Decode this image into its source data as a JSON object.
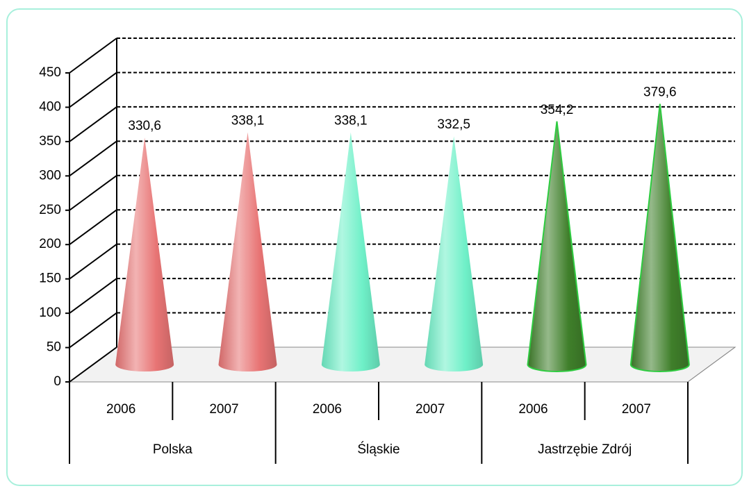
{
  "chart_data": {
    "type": "cone",
    "groups": [
      {
        "name": "Polska",
        "categories": [
          "2006",
          "2007"
        ],
        "color": "#e87474"
      },
      {
        "name": "Śląskie",
        "categories": [
          "2006",
          "2007"
        ],
        "color": "#6ff0c8"
      },
      {
        "name": "Jastrzębie Zdrój",
        "categories": [
          "2006",
          "2007"
        ],
        "color": "#3f7f2a"
      }
    ],
    "values": [
      330.6,
      338.1,
      338.1,
      332.5,
      354.2,
      379.6
    ],
    "value_labels": [
      "330,6",
      "338,1",
      "338,1",
      "332,5",
      "354,2",
      "379,6"
    ],
    "ylim": [
      0,
      450
    ],
    "yticks": [
      0,
      50,
      100,
      150,
      200,
      250,
      300,
      350,
      400,
      450
    ],
    "grid": true
  }
}
